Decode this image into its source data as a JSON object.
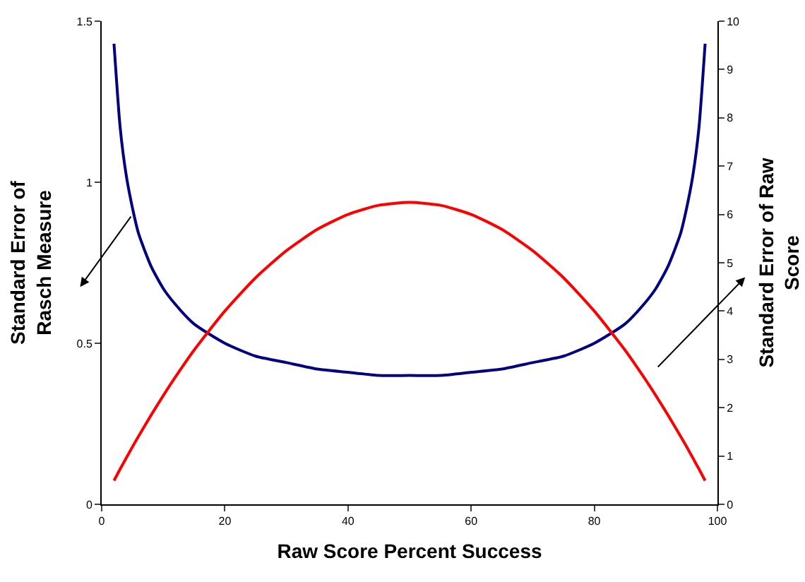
{
  "chart_data": {
    "type": "line",
    "xlabel": "Raw Score Percent Success",
    "ylabel": "Standard Error of\nRasch Measure",
    "y2label": "Standard Error of Raw\nScore",
    "x": [
      2,
      3,
      4,
      5,
      6,
      8,
      10,
      12,
      15,
      20,
      25,
      30,
      35,
      40,
      45,
      50,
      55,
      60,
      65,
      70,
      75,
      80,
      85,
      88,
      90,
      92,
      94,
      95,
      96,
      97,
      98
    ],
    "series": [
      {
        "color": "#000080",
        "values": [
          1.43,
          1.17,
          1.02,
          0.92,
          0.84,
          0.74,
          0.67,
          0.62,
          0.56,
          0.5,
          0.46,
          0.44,
          0.42,
          0.41,
          0.4,
          0.4,
          0.4,
          0.41,
          0.42,
          0.44,
          0.46,
          0.5,
          0.56,
          0.62,
          0.67,
          0.74,
          0.84,
          0.92,
          1.02,
          1.17,
          1.43
        ]
      },
      {
        "color": "#ff0000",
        "axis": "y2",
        "values": [
          0.49,
          0.73,
          0.96,
          1.19,
          1.41,
          1.84,
          2.25,
          2.64,
          3.19,
          4.0,
          4.69,
          5.25,
          5.69,
          6.0,
          6.19,
          6.25,
          6.19,
          6.0,
          5.69,
          5.25,
          4.69,
          4.0,
          3.19,
          2.64,
          2.25,
          1.84,
          1.41,
          1.19,
          0.96,
          0.73,
          0.49
        ]
      }
    ],
    "xlim": [
      0,
      100
    ],
    "xticks": [
      0,
      20,
      40,
      60,
      80,
      100
    ],
    "ylim": [
      0,
      1.5
    ],
    "yticks": [
      0,
      0.5,
      1,
      1.5
    ],
    "y2lim": [
      0,
      10
    ],
    "y2ticks": [
      0,
      1,
      2,
      3,
      4,
      5,
      6,
      7,
      8,
      9,
      10
    ],
    "grid": false,
    "marker": "none",
    "line_style": "solid"
  }
}
